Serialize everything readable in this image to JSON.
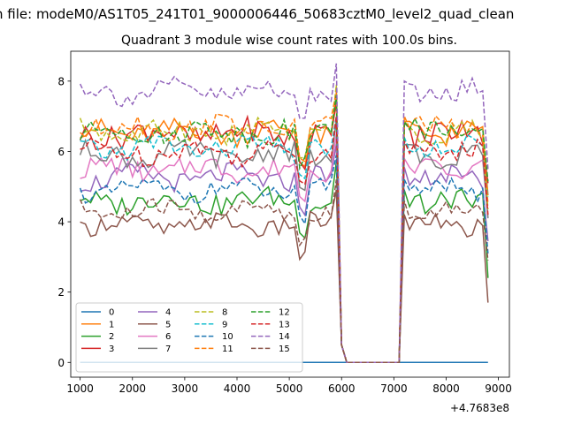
{
  "chart_data": {
    "type": "line",
    "suptitle": "n file: modeM0/AS1T05_241T01_9000006446_50683cztM0_level2_quad_clean",
    "title": "Quadrant 3 module wise count rates with 100.0s bins.",
    "xlabel": "",
    "ylabel": "",
    "x_offset_label": "+4.7683e8",
    "xlim": [
      820,
      9210
    ],
    "ylim": [
      -0.42,
      8.85
    ],
    "xticks": [
      1000,
      2000,
      3000,
      4000,
      5000,
      6000,
      7000,
      8000,
      9000
    ],
    "xtick_labels": [
      "1000",
      "2000",
      "3000",
      "4000",
      "5000",
      "6000",
      "7000",
      "8000",
      "9000"
    ],
    "yticks": [
      0,
      2,
      4,
      6,
      8
    ],
    "ytick_labels": [
      "0",
      "2",
      "4",
      "6",
      "8"
    ],
    "grid": false,
    "legend_position": "lower left",
    "legend_columns": 4,
    "gap": {
      "from": 6100,
      "to": 7100
    },
    "seg1_x_start": 1000,
    "seg1_x_end": 5900,
    "seg2_x_start": 7200,
    "seg2_x_end": 8800,
    "bin_seconds": 100,
    "series": [
      {
        "name": "0",
        "color": "#1f77b4",
        "dashed": false,
        "level": 0.0,
        "spike": 0.0,
        "amp": 0.0
      },
      {
        "name": "1",
        "color": "#ff7f0e",
        "dashed": false,
        "level": 6.55,
        "spike": 7.6,
        "amp": 0.3
      },
      {
        "name": "2",
        "color": "#2ca02c",
        "dashed": false,
        "level": 4.6,
        "spike": 5.7,
        "amp": 0.3
      },
      {
        "name": "3",
        "color": "#d62728",
        "dashed": false,
        "level": 6.5,
        "spike": 7.4,
        "amp": 0.35
      },
      {
        "name": "4",
        "color": "#9467bd",
        "dashed": false,
        "level": 5.25,
        "spike": 6.2,
        "amp": 0.3
      },
      {
        "name": "5",
        "color": "#8c564b",
        "dashed": false,
        "level": 3.9,
        "spike": 4.9,
        "amp": 0.25
      },
      {
        "name": "6",
        "color": "#e377c2",
        "dashed": false,
        "level": 5.5,
        "spike": 6.5,
        "amp": 0.3
      },
      {
        "name": "7",
        "color": "#7f7f7f",
        "dashed": false,
        "level": 5.9,
        "spike": 6.9,
        "amp": 0.3
      },
      {
        "name": "8",
        "color": "#bcbd22",
        "dashed": true,
        "level": 6.55,
        "spike": 7.9,
        "amp": 0.3
      },
      {
        "name": "9",
        "color": "#17becf",
        "dashed": true,
        "level": 6.1,
        "spike": 7.0,
        "amp": 0.3
      },
      {
        "name": "10",
        "color": "#1f77b4",
        "dashed": true,
        "level": 4.9,
        "spike": 5.9,
        "amp": 0.25
      },
      {
        "name": "11",
        "color": "#ff7f0e",
        "dashed": true,
        "level": 6.7,
        "spike": 7.7,
        "amp": 0.3
      },
      {
        "name": "12",
        "color": "#2ca02c",
        "dashed": true,
        "level": 6.55,
        "spike": 7.6,
        "amp": 0.3
      },
      {
        "name": "13",
        "color": "#d62728",
        "dashed": true,
        "level": 6.0,
        "spike": 7.0,
        "amp": 0.3
      },
      {
        "name": "14",
        "color": "#9467bd",
        "dashed": true,
        "level": 7.7,
        "spike": 8.5,
        "amp": 0.3
      },
      {
        "name": "15",
        "color": "#8c564b",
        "dashed": true,
        "level": 4.3,
        "spike": 5.2,
        "amp": 0.25
      }
    ]
  }
}
